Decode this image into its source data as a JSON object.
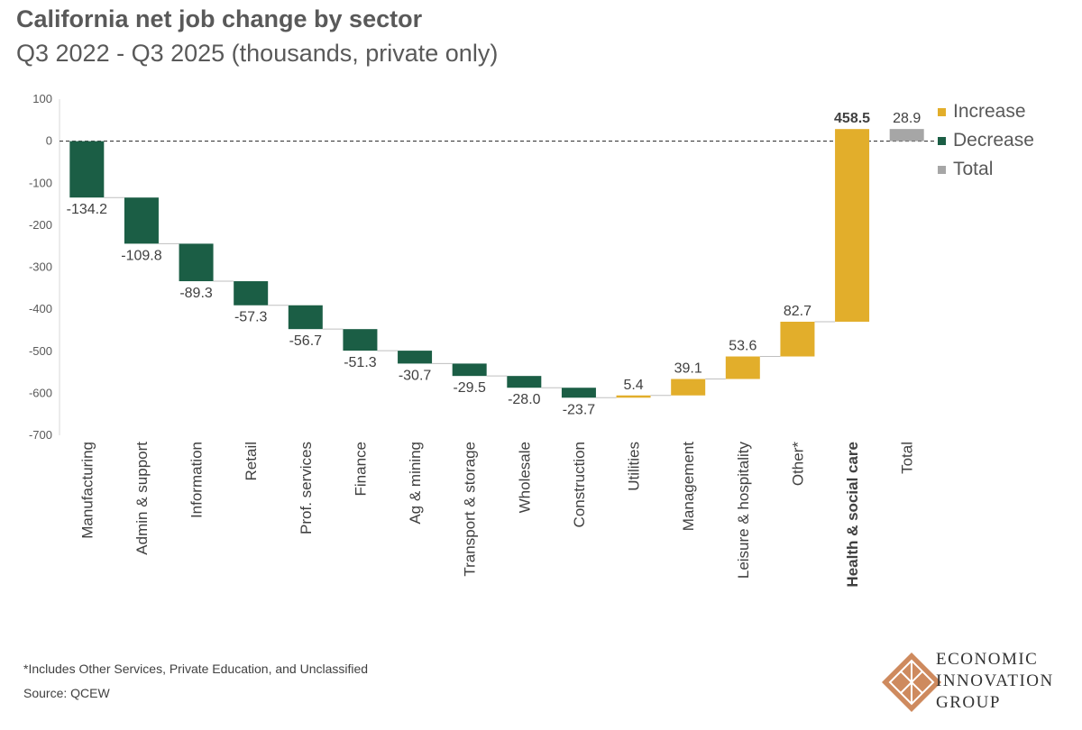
{
  "header": {
    "title": "California net job change by sector",
    "subtitle": "Q3 2022 - Q3 2025 (thousands, private only)"
  },
  "legend": [
    {
      "label": "Increase",
      "color": "#E2AE2B"
    },
    {
      "label": "Decrease",
      "color": "#1B5E45"
    },
    {
      "label": "Total",
      "color": "#A6A6A6"
    }
  ],
  "footer": {
    "footnote": "*Includes Other Services, Private Education, and Unclassified",
    "source": "Source: QCEW"
  },
  "logo": {
    "line1": "ECONOMIC",
    "line2": "INNOVATION",
    "line3": "GROUP"
  },
  "chart_data": {
    "type": "bar",
    "subtype": "waterfall",
    "ylim": [
      -700,
      100
    ],
    "yticks": [
      100,
      0,
      -100,
      -200,
      -300,
      -400,
      -500,
      -600,
      -700
    ],
    "grid": false,
    "zero_line": "dashed",
    "legend_position": "top-right",
    "colors": {
      "increase": "#E2AE2B",
      "decrease": "#1B5E45",
      "total": "#A6A6A6"
    },
    "categories": [
      "Manufacturing",
      "Admin & support",
      "Information",
      "Retail",
      "Prof. services",
      "Finance",
      "Ag & mining",
      "Transport & storage",
      "Wholesale",
      "Construction",
      "Utilities",
      "Management",
      "Leisure & hospitality",
      "Other*",
      "Health & social care",
      "Total"
    ],
    "values": [
      -134.2,
      -109.8,
      -89.3,
      -57.3,
      -56.7,
      -51.3,
      -30.7,
      -29.5,
      -28.0,
      -23.7,
      5.4,
      39.1,
      53.6,
      82.7,
      458.5,
      28.9
    ],
    "value_labels": [
      "-134.2",
      "-109.8",
      "-89.3",
      "-57.3",
      "-56.7",
      "-51.3",
      "-30.7",
      "-29.5",
      "-28.0",
      "-23.7",
      "5.4",
      "39.1",
      "53.6",
      "82.7",
      "458.5",
      "28.9"
    ],
    "kinds": [
      "decrease",
      "decrease",
      "decrease",
      "decrease",
      "decrease",
      "decrease",
      "decrease",
      "decrease",
      "decrease",
      "decrease",
      "increase",
      "increase",
      "increase",
      "increase",
      "increase",
      "total"
    ],
    "bold": [
      false,
      false,
      false,
      false,
      false,
      false,
      false,
      false,
      false,
      false,
      false,
      false,
      false,
      false,
      true,
      false
    ]
  }
}
